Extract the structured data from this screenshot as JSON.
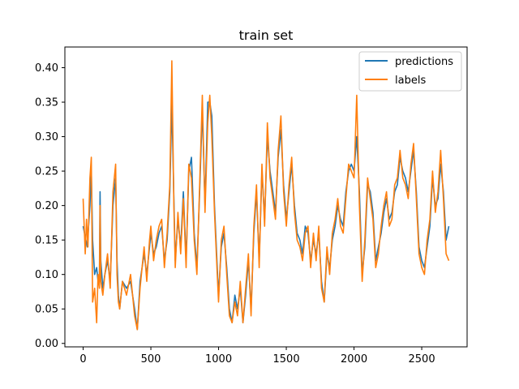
{
  "chart_data": {
    "type": "line",
    "title": "train set",
    "xlabel": "",
    "ylabel": "",
    "xlim": [
      -135,
      2835
    ],
    "ylim": [
      -0.005,
      0.43
    ],
    "xticks": [
      0,
      500,
      1000,
      1500,
      2000,
      2500
    ],
    "xtick_labels": [
      "0",
      "500",
      "1000",
      "1500",
      "2000",
      "2500"
    ],
    "yticks": [
      0.0,
      0.05,
      0.1,
      0.15,
      0.2,
      0.25,
      0.3,
      0.35,
      0.4
    ],
    "ytick_labels": [
      "0.00",
      "0.05",
      "0.10",
      "0.15",
      "0.20",
      "0.25",
      "0.30",
      "0.35",
      "0.40"
    ],
    "grid": false,
    "legend_position": "top-right",
    "series": [
      {
        "name": "predictions",
        "color": "#1f77b4",
        "x": [
          0,
          30,
          50,
          60,
          70,
          85,
          100,
          110,
          120,
          125,
          130,
          145,
          160,
          180,
          200,
          220,
          240,
          250,
          260,
          270,
          290,
          320,
          350,
          380,
          400,
          420,
          450,
          470,
          490,
          500,
          520,
          540,
          560,
          580,
          600,
          620,
          640,
          655,
          670,
          680,
          700,
          720,
          740,
          760,
          780,
          800,
          820,
          840,
          860,
          880,
          900,
          920,
          935,
          950,
          970,
          990,
          1000,
          1020,
          1040,
          1060,
          1080,
          1100,
          1120,
          1140,
          1160,
          1180,
          1200,
          1220,
          1240,
          1260,
          1280,
          1300,
          1320,
          1340,
          1360,
          1380,
          1400,
          1420,
          1440,
          1460,
          1480,
          1500,
          1520,
          1540,
          1560,
          1580,
          1600,
          1620,
          1640,
          1660,
          1680,
          1700,
          1720,
          1740,
          1760,
          1780,
          1800,
          1820,
          1840,
          1860,
          1880,
          1900,
          1920,
          1940,
          1960,
          1980,
          2000,
          2020,
          2040,
          2060,
          2080,
          2100,
          2120,
          2140,
          2160,
          2180,
          2200,
          2220,
          2240,
          2260,
          2280,
          2300,
          2320,
          2340,
          2360,
          2380,
          2400,
          2420,
          2440,
          2460,
          2480,
          2500,
          2520,
          2540,
          2560,
          2580,
          2600,
          2620,
          2640,
          2660,
          2680,
          2700
        ],
        "values": [
          0.17,
          0.14,
          0.2,
          0.25,
          0.15,
          0.1,
          0.11,
          0.09,
          0.1,
          0.22,
          0.12,
          0.08,
          0.1,
          0.12,
          0.09,
          0.2,
          0.24,
          0.12,
          0.07,
          0.05,
          0.09,
          0.08,
          0.09,
          0.05,
          0.02,
          0.09,
          0.13,
          0.1,
          0.14,
          0.16,
          0.13,
          0.14,
          0.16,
          0.17,
          0.12,
          0.15,
          0.22,
          0.35,
          0.21,
          0.12,
          0.18,
          0.14,
          0.22,
          0.12,
          0.25,
          0.27,
          0.16,
          0.11,
          0.22,
          0.34,
          0.2,
          0.35,
          0.35,
          0.33,
          0.2,
          0.11,
          0.07,
          0.14,
          0.16,
          0.11,
          0.05,
          0.03,
          0.07,
          0.05,
          0.08,
          0.03,
          0.07,
          0.12,
          0.05,
          0.16,
          0.22,
          0.12,
          0.25,
          0.18,
          0.3,
          0.25,
          0.22,
          0.19,
          0.27,
          0.31,
          0.23,
          0.18,
          0.22,
          0.26,
          0.2,
          0.16,
          0.15,
          0.13,
          0.17,
          0.16,
          0.12,
          0.15,
          0.13,
          0.16,
          0.09,
          0.06,
          0.13,
          0.11,
          0.15,
          0.17,
          0.2,
          0.18,
          0.17,
          0.22,
          0.25,
          0.26,
          0.25,
          0.3,
          0.22,
          0.1,
          0.14,
          0.23,
          0.22,
          0.19,
          0.12,
          0.14,
          0.16,
          0.19,
          0.21,
          0.18,
          0.19,
          0.22,
          0.23,
          0.27,
          0.25,
          0.24,
          0.22,
          0.25,
          0.28,
          0.22,
          0.14,
          0.12,
          0.11,
          0.14,
          0.17,
          0.24,
          0.2,
          0.21,
          0.26,
          0.22,
          0.15,
          0.17
        ]
      },
      {
        "name": "labels",
        "color": "#ff7f0e",
        "x": [
          0,
          15,
          25,
          35,
          50,
          60,
          70,
          85,
          100,
          110,
          120,
          125,
          130,
          145,
          160,
          180,
          200,
          220,
          240,
          250,
          260,
          270,
          290,
          320,
          350,
          380,
          400,
          420,
          450,
          470,
          490,
          500,
          520,
          540,
          560,
          580,
          600,
          620,
          640,
          655,
          670,
          680,
          700,
          720,
          740,
          760,
          780,
          800,
          820,
          840,
          860,
          880,
          900,
          920,
          935,
          950,
          970,
          990,
          1000,
          1020,
          1040,
          1060,
          1080,
          1100,
          1120,
          1140,
          1160,
          1180,
          1200,
          1220,
          1240,
          1260,
          1280,
          1300,
          1320,
          1340,
          1360,
          1380,
          1400,
          1420,
          1440,
          1460,
          1480,
          1500,
          1520,
          1540,
          1560,
          1580,
          1600,
          1620,
          1640,
          1660,
          1680,
          1700,
          1720,
          1740,
          1760,
          1780,
          1800,
          1820,
          1840,
          1860,
          1880,
          1900,
          1920,
          1940,
          1960,
          1980,
          2000,
          2020,
          2040,
          2060,
          2080,
          2100,
          2120,
          2140,
          2160,
          2180,
          2200,
          2220,
          2240,
          2260,
          2280,
          2300,
          2320,
          2340,
          2360,
          2380,
          2400,
          2420,
          2440,
          2460,
          2480,
          2500,
          2520,
          2540,
          2560,
          2580,
          2600,
          2620,
          2640,
          2660,
          2680,
          2700
        ],
        "values": [
          0.21,
          0.13,
          0.18,
          0.14,
          0.24,
          0.27,
          0.06,
          0.08,
          0.03,
          0.1,
          0.08,
          0.2,
          0.09,
          0.07,
          0.1,
          0.13,
          0.08,
          0.22,
          0.26,
          0.1,
          0.06,
          0.05,
          0.09,
          0.07,
          0.1,
          0.04,
          0.02,
          0.08,
          0.14,
          0.09,
          0.15,
          0.17,
          0.12,
          0.15,
          0.17,
          0.18,
          0.11,
          0.16,
          0.23,
          0.41,
          0.2,
          0.11,
          0.19,
          0.13,
          0.21,
          0.11,
          0.26,
          0.24,
          0.15,
          0.1,
          0.23,
          0.36,
          0.19,
          0.32,
          0.36,
          0.3,
          0.19,
          0.1,
          0.06,
          0.15,
          0.17,
          0.1,
          0.04,
          0.03,
          0.06,
          0.04,
          0.09,
          0.03,
          0.08,
          0.13,
          0.04,
          0.17,
          0.23,
          0.11,
          0.26,
          0.17,
          0.32,
          0.24,
          0.21,
          0.18,
          0.28,
          0.33,
          0.22,
          0.17,
          0.23,
          0.27,
          0.19,
          0.15,
          0.14,
          0.12,
          0.16,
          0.17,
          0.11,
          0.16,
          0.12,
          0.17,
          0.08,
          0.06,
          0.14,
          0.1,
          0.16,
          0.18,
          0.21,
          0.17,
          0.16,
          0.21,
          0.26,
          0.25,
          0.24,
          0.36,
          0.2,
          0.09,
          0.15,
          0.24,
          0.21,
          0.18,
          0.11,
          0.13,
          0.17,
          0.2,
          0.22,
          0.17,
          0.18,
          0.23,
          0.24,
          0.28,
          0.24,
          0.23,
          0.21,
          0.26,
          0.29,
          0.21,
          0.13,
          0.11,
          0.1,
          0.15,
          0.18,
          0.25,
          0.19,
          0.22,
          0.28,
          0.21,
          0.13,
          0.12
        ]
      }
    ]
  }
}
